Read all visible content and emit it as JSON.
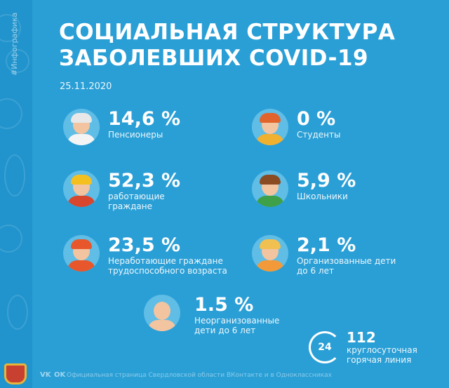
{
  "side_tag": "#Инфографика",
  "title_line1": "СОЦИАЛЬНАЯ СТРУКТУРА",
  "title_line2": "ЗАБОЛЕВШИХ COVID-19",
  "date": "25.11.2020",
  "items": [
    {
      "percent": "14,6 %",
      "label": "Пенсионеры"
    },
    {
      "percent": "0 %",
      "label": "Студенты"
    },
    {
      "percent": "52,3 %",
      "label": "работающие граждане"
    },
    {
      "percent": "5,9 %",
      "label": "Школьники"
    },
    {
      "percent": "23,5 %",
      "label": "Неработающие граждане трудоспособного возраста"
    },
    {
      "percent": "2,1 %",
      "label": "Организованные дети до 6 лет"
    },
    {
      "percent": "1.5 %",
      "label": "Неорганизованные дети до 6 лет"
    }
  ],
  "hotline": {
    "icon_text": "24",
    "number": "112",
    "label": "круглосуточная горячая линия"
  },
  "footer": {
    "vk": "VK",
    "ok": "OK",
    "text": "Официальная страница Свердловской области ВКонтакте и в Одноклассниках"
  },
  "colors": {
    "background": "#2a9fd6",
    "strip": "#2194cd"
  }
}
